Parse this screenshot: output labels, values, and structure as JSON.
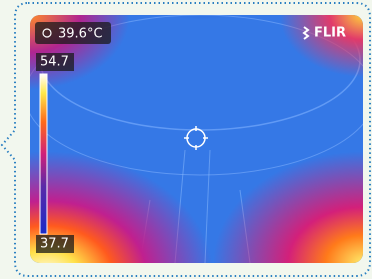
{
  "spot_reading": "39.6°C",
  "scale": {
    "max": 54.7,
    "min": 37.7
  },
  "logo": "FLIR"
}
